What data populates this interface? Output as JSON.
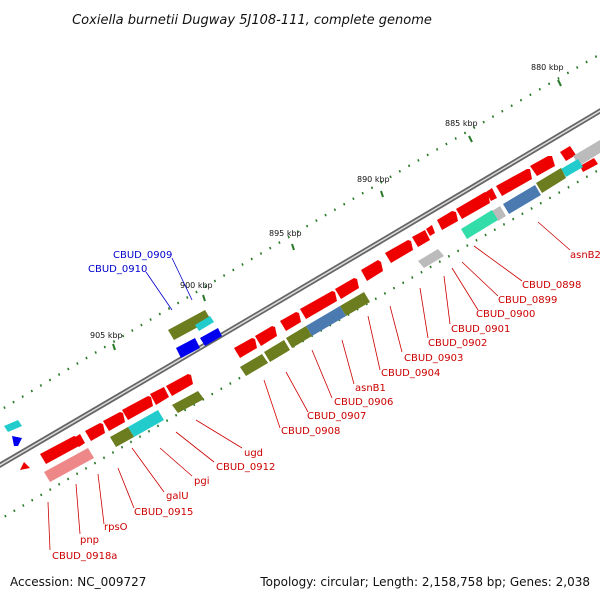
{
  "title": "Coxiella burnetii Dugway 5J108-111, complete genome",
  "footer": {
    "accession": "Accession: NC_009727",
    "summary": "Topology: circular; Length: 2,158,758 bp; Genes: 2,038"
  },
  "colors": {
    "forward_gene": "#ee0000",
    "reverse_gene": "#ee0000",
    "label_red": "#cc0000",
    "label_blue": "#0000cc",
    "olive": "#6b7d1f",
    "steel_blue": "#4a7ab0",
    "cyan": "#22cccc",
    "teal": "#33ddaa",
    "pink": "#ee8888",
    "grey": "#bbbbbb",
    "blue": "#0000ee",
    "backbone": "#777777",
    "tick_green": "#2a7a2a"
  },
  "ticks": [
    {
      "label": "880 kbp"
    },
    {
      "label": "885 kbp"
    },
    {
      "label": "890 kbp"
    },
    {
      "label": "895 kbp"
    },
    {
      "label": "900 kbp"
    },
    {
      "label": "905 kbp"
    }
  ],
  "gene_labels": [
    {
      "text": "asnB2",
      "color": "red"
    },
    {
      "text": "CBUD_0898",
      "color": "red"
    },
    {
      "text": "CBUD_0899",
      "color": "red"
    },
    {
      "text": "CBUD_0900",
      "color": "red"
    },
    {
      "text": "CBUD_0901",
      "color": "red"
    },
    {
      "text": "CBUD_0902",
      "color": "red"
    },
    {
      "text": "CBUD_0903",
      "color": "red"
    },
    {
      "text": "CBUD_0904",
      "color": "red"
    },
    {
      "text": "asnB1",
      "color": "red"
    },
    {
      "text": "CBUD_0906",
      "color": "red"
    },
    {
      "text": "CBUD_0907",
      "color": "red"
    },
    {
      "text": "CBUD_0908",
      "color": "red"
    },
    {
      "text": "ugd",
      "color": "red"
    },
    {
      "text": "CBUD_0912",
      "color": "red"
    },
    {
      "text": "pgi",
      "color": "red"
    },
    {
      "text": "galU",
      "color": "red"
    },
    {
      "text": "CBUD_0915",
      "color": "red"
    },
    {
      "text": "rpsO",
      "color": "red"
    },
    {
      "text": "pnp",
      "color": "red"
    },
    {
      "text": "CBUD_0918a",
      "color": "red"
    },
    {
      "text": "CBUD_0909",
      "color": "blue"
    },
    {
      "text": "CBUD_0910",
      "color": "blue"
    }
  ]
}
